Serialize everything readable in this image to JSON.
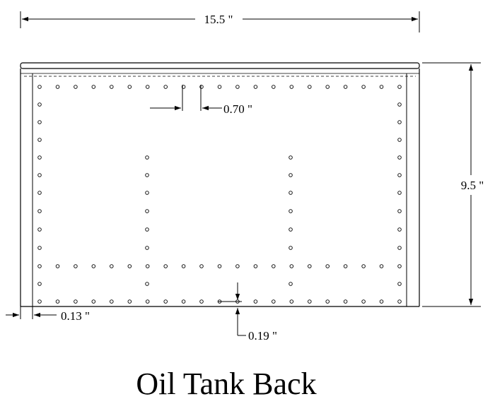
{
  "title": "Oil Tank Back",
  "dimensions": {
    "width": "15.5 \"",
    "height": "9.5 \"",
    "hole_spacing": "0.70 \"",
    "edge_offset": "0.13 \"",
    "bottom_offset": "0.19 \""
  }
}
